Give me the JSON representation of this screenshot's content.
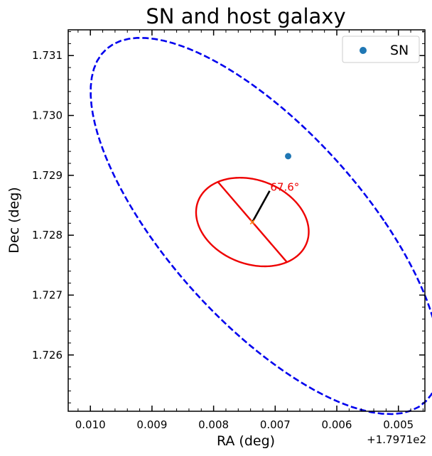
{
  "chart_data": {
    "type": "scatter",
    "title": "SN and host galaxy",
    "xlabel": "RA (deg)",
    "ylabel": "Dec (deg)",
    "x_offset_label": "+1.7971e2",
    "x_offset": 179.71,
    "x_inverted": true,
    "xlim": [
      0.01036,
      0.00457
    ],
    "ylim": [
      1.72506,
      1.73143
    ],
    "x_ticks": [
      0.01,
      0.009,
      0.008,
      0.007,
      0.006,
      0.005
    ],
    "x_tick_labels": [
      "0.010",
      "0.009",
      "0.008",
      "0.007",
      "0.006",
      "0.005"
    ],
    "y_ticks": [
      1.726,
      1.727,
      1.728,
      1.729,
      1.73,
      1.731
    ],
    "y_tick_labels": [
      "1.726",
      "1.727",
      "1.728",
      "1.729",
      "1.730",
      "1.731"
    ],
    "grid": false,
    "legend": {
      "position": "top-right",
      "entries": [
        {
          "label": "SN",
          "color": "#1f77b4",
          "marker": "circle"
        }
      ]
    },
    "sn_point": {
      "label": "SN",
      "ra": 0.00679,
      "dec": 1.72932,
      "color": "#1f77b4"
    },
    "host_center": {
      "ra": 0.00737,
      "dec": 1.72822,
      "color": "#ff7f0e",
      "marker": "x"
    },
    "outer_ellipse": {
      "center": [
        0.00737,
        1.72822
      ],
      "points": [
        [
          0.0098,
          1.72944
        ],
        [
          0.00852,
          1.73116
        ],
        [
          0.0064,
          1.72967
        ],
        [
          0.0046,
          1.72707
        ],
        [
          0.00621,
          1.72533
        ],
        [
          0.00883,
          1.72677
        ]
      ],
      "color": "#0000ee",
      "style": "dashed"
    },
    "inner_ellipse": {
      "center": [
        0.00737,
        1.72822
      ],
      "points": [
        [
          0.00793,
          1.72889
        ],
        [
          0.00757,
          1.72896
        ],
        [
          0.00681,
          1.72755
        ],
        [
          0.00747,
          1.72752
        ]
      ],
      "color": "#ee0000",
      "style": "solid"
    },
    "major_axis": {
      "from": [
        0.00793,
        1.72889
      ],
      "to": [
        0.00681,
        1.72755
      ],
      "color": "#ee0000"
    },
    "minor_axis": {
      "from": [
        0.00737,
        1.72822
      ],
      "to": [
        0.00709,
        1.72874
      ],
      "color": "#000000"
    },
    "annotation": {
      "text": "67.6°",
      "ra": 0.00708,
      "dec": 1.7288,
      "color": "#ee0000"
    }
  }
}
